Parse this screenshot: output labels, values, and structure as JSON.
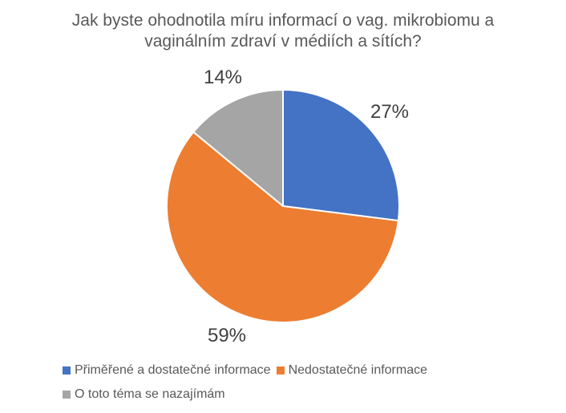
{
  "chart_data": {
    "type": "pie",
    "title": "Jak byste ohodnotila míru informací o vag. mikrobiomu a vaginálním zdraví v médiích a sítích?",
    "title_lines": [
      "Jak byste ohodnotila míru informací o vag. mikrobiomu a",
      "vaginálním zdraví v médiích a sítích?"
    ],
    "slices": [
      {
        "label": "Přiměřené a dostatečné informace",
        "value": 27,
        "percent_label": "27%",
        "color": "#4472C4"
      },
      {
        "label": "Nedostatečné informace",
        "value": 59,
        "percent_label": "59%",
        "color": "#ED7D31"
      },
      {
        "label": "O toto téma se nazajímám",
        "value": 14,
        "percent_label": "14%",
        "color": "#A5A5A5"
      }
    ],
    "start_angle_deg": 0,
    "direction": "clockwise",
    "data_labels": "outside-end",
    "legend_position": "bottom-left",
    "background_color": "#ffffff",
    "title_color": "#595959",
    "label_color": "#404040",
    "legend_text_color": "#595959"
  }
}
